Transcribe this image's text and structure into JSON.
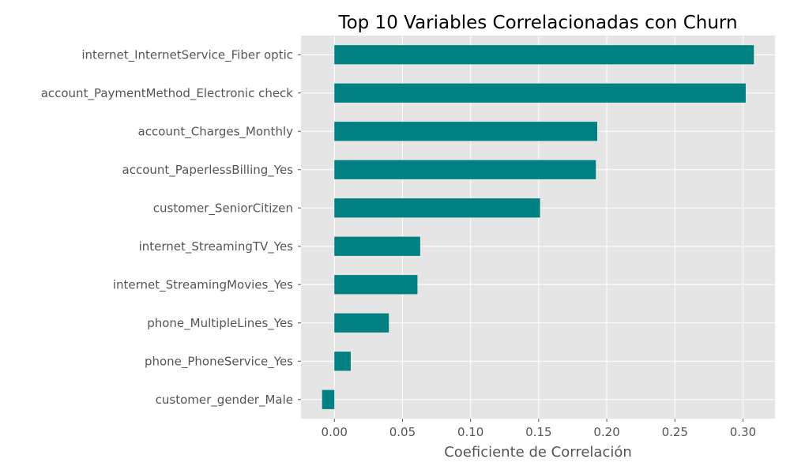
{
  "chart_data": {
    "type": "bar",
    "orientation": "horizontal",
    "title": "Top 10 Variables Correlacionadas con Churn",
    "xlabel": "Coeficiente de Correlación",
    "ylabel": "",
    "categories": [
      "internet_InternetService_Fiber optic",
      "account_PaymentMethod_Electronic check",
      "account_Charges_Monthly",
      "account_PaperlessBilling_Yes",
      "customer_SeniorCitizen",
      "internet_StreamingTV_Yes",
      "internet_StreamingMovies_Yes",
      "phone_MultipleLines_Yes",
      "phone_PhoneService_Yes",
      "customer_gender_Male"
    ],
    "values": [
      0.308,
      0.302,
      0.193,
      0.192,
      0.151,
      0.063,
      0.061,
      0.04,
      0.012,
      -0.009
    ],
    "xlim": [
      -0.0245,
      0.3235
    ],
    "xticks": [
      0.0,
      0.05,
      0.1,
      0.15,
      0.2,
      0.25,
      0.3
    ],
    "xtick_labels": [
      "0.00",
      "0.05",
      "0.10",
      "0.15",
      "0.20",
      "0.25",
      "0.30"
    ],
    "grid": true,
    "legend": "none",
    "colors": {
      "bar": "#008080",
      "plot_background": "#e5e5e5",
      "grid": "#ffffff",
      "tick_text": "#555555",
      "title_text": "#000000"
    }
  }
}
